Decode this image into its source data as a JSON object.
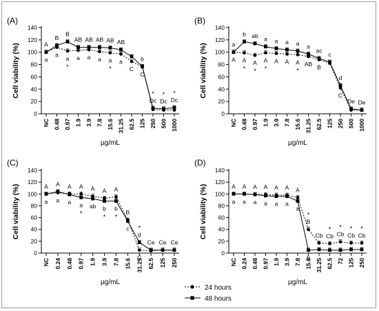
{
  "chart_data": [
    {
      "type": "line",
      "panel_label": "(A)",
      "ylabel": "Cell viability (%)",
      "xlabel": "µg/mL",
      "ylim": [
        0,
        140
      ],
      "yticks": [
        0,
        20,
        40,
        60,
        80,
        100,
        120,
        140
      ],
      "categories": [
        "NC",
        "0.48",
        "0.97",
        "1.9",
        "3.9",
        "7.8",
        "15.6",
        "31.25",
        "62.5",
        "125",
        "250",
        "500",
        "1000"
      ],
      "series": [
        {
          "name": "24 hours",
          "values": [
            100,
            108,
            102,
            103,
            104,
            101,
            99,
            97,
            85,
            76,
            7,
            6,
            6
          ]
        },
        {
          "name": "48 hours",
          "values": [
            100,
            111,
            117,
            108,
            108,
            108,
            107,
            104,
            93,
            77,
            9,
            8,
            10
          ]
        }
      ],
      "upper_labels": [
        "A",
        "B",
        "B",
        "AB",
        "AB",
        "AB",
        "AB",
        "AB",
        "",
        "b",
        "Dc",
        "Dc",
        "Dc"
      ],
      "lower_labels": [
        "a",
        "a",
        "a",
        "a",
        "a",
        "a",
        "a",
        "a",
        "C",
        "C",
        "",
        "",
        ""
      ],
      "stars_above": [
        10,
        11,
        12
      ],
      "stars_below": [
        2,
        6
      ]
    },
    {
      "type": "line",
      "panel_label": "(B)",
      "ylabel": "Cell viability (%)",
      "xlabel": "µg/mL",
      "ylim": [
        0,
        140
      ],
      "yticks": [
        0,
        20,
        40,
        60,
        80,
        100,
        120,
        140
      ],
      "categories": [
        "NC",
        "0.48",
        "0.97",
        "1.9",
        "3.9",
        "7.8",
        "15.6",
        "31.25",
        "62.5",
        "125",
        "250",
        "500",
        "1000"
      ],
      "series": [
        {
          "name": "24 hours",
          "values": [
            100,
            99,
            95,
            99,
            98,
            97,
            96,
            93,
            88,
            82,
            42,
            6,
            6
          ]
        },
        {
          "name": "48 hours",
          "values": [
            100,
            117,
            114,
            109,
            106,
            104,
            102,
            97,
            90,
            84,
            46,
            8,
            6
          ]
        }
      ],
      "upper_labels": [
        "a",
        "b",
        "ab",
        "a",
        "a",
        "a",
        "a",
        "a",
        "ac",
        "c",
        "d",
        "De",
        "De"
      ],
      "lower_labels": [
        "A",
        "A",
        "A",
        "A",
        "A",
        "A",
        "A",
        "AB",
        "B",
        "",
        "C",
        "",
        ""
      ],
      "stars_above": [],
      "stars_below": [
        1,
        2,
        3,
        6
      ]
    },
    {
      "type": "line",
      "panel_label": "(C)",
      "ylabel": "Cell viability (%)",
      "xlabel": "µg/mL",
      "ylim": [
        0,
        140
      ],
      "yticks": [
        0,
        20,
        40,
        60,
        80,
        100,
        120,
        140
      ],
      "categories": [
        "NC",
        "0.24",
        "0.48",
        "0.97",
        "1.9",
        "3.9",
        "7.8",
        "15.6",
        "31.25",
        "62.5",
        "125",
        "250"
      ],
      "series": [
        {
          "name": "24 hours",
          "values": [
            100,
            102,
            100,
            100,
            96,
            93,
            95,
            56,
            5,
            4,
            5,
            5
          ]
        },
        {
          "name": "48 hours",
          "values": [
            100,
            104,
            99,
            94,
            92,
            88,
            88,
            54,
            18,
            5,
            5,
            5
          ]
        }
      ],
      "upper_labels": [
        "A",
        "A",
        "A",
        "A",
        "A",
        "A",
        "A",
        "B",
        "d",
        "Ce",
        "Ce",
        "Ce"
      ],
      "lower_labels": [
        "a",
        "a",
        "a",
        "a",
        "ab",
        "b",
        "b",
        "c",
        "C",
        "",
        "",
        ""
      ],
      "stars_above": [
        8
      ],
      "stars_below": [
        3,
        5,
        6
      ]
    },
    {
      "type": "line",
      "panel_label": "(D)",
      "ylabel": "Cell viability (%)",
      "xlabel": "µg/mL",
      "ylim": [
        0,
        140
      ],
      "yticks": [
        0,
        20,
        40,
        60,
        80,
        100,
        120,
        140
      ],
      "categories": [
        "NC",
        "0.24",
        "0.48",
        "0.97",
        "1.9",
        "3.9",
        "7.8",
        "15.6",
        "31.25",
        "62.5",
        "72",
        "125",
        "250"
      ],
      "series": [
        {
          "name": "24 hours",
          "values": [
            100,
            100,
            99,
            99,
            98,
            98,
            94,
            40,
            17,
            16,
            19,
            17,
            17
          ]
        },
        {
          "name": "48 hours",
          "values": [
            100,
            100,
            99,
            97,
            96,
            96,
            88,
            5,
            6,
            5,
            5,
            6,
            6
          ]
        }
      ],
      "upper_labels": [
        "A",
        "A",
        "A",
        "A",
        "A",
        "A",
        "A",
        "B",
        "Cb",
        "Cb",
        "Cb",
        "Cb",
        "Cb"
      ],
      "lower_labels": [
        "a",
        "a",
        "a",
        "a",
        "a",
        "a",
        "a",
        "b",
        "",
        "",
        "",
        "",
        ""
      ],
      "stars_above": [
        7,
        9,
        10,
        11,
        12
      ],
      "stars_below": []
    }
  ],
  "legend": {
    "items": [
      {
        "label": "24 hours",
        "marker": "circle"
      },
      {
        "label": "48 hours",
        "marker": "square"
      }
    ]
  }
}
